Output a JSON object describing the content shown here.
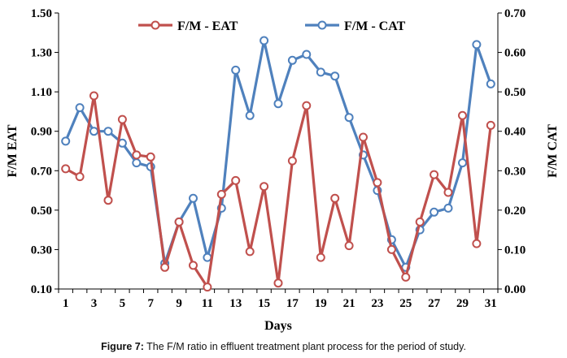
{
  "chart_data": {
    "type": "line",
    "xlabel": "Days",
    "ylabel_left": "F/M EAT",
    "ylabel_right": "F/M CAT",
    "x": [
      1,
      2,
      3,
      4,
      5,
      6,
      7,
      8,
      9,
      10,
      11,
      12,
      13,
      14,
      15,
      16,
      17,
      18,
      19,
      20,
      21,
      22,
      23,
      24,
      25,
      26,
      27,
      28,
      29,
      30,
      31
    ],
    "x_tick_labels": [
      "1",
      "3",
      "5",
      "7",
      "9",
      "11",
      "13",
      "15",
      "17",
      "19",
      "21",
      "23",
      "25",
      "27",
      "29",
      "31"
    ],
    "y_left": {
      "min": 0.1,
      "max": 1.5,
      "ticks": [
        "0.10",
        "0.30",
        "0.50",
        "0.70",
        "0.90",
        "1.10",
        "1.30",
        "1.50"
      ]
    },
    "y_right": {
      "min": 0.0,
      "max": 0.7,
      "ticks": [
        "0.00",
        "0.10",
        "0.20",
        "0.30",
        "0.40",
        "0.50",
        "0.60",
        "0.70"
      ]
    },
    "grid": false,
    "legend_position": "top-center",
    "series": [
      {
        "name": "F/M - EAT",
        "axis": "left",
        "color": "#c0504d",
        "values": [
          0.71,
          0.67,
          1.08,
          0.55,
          0.96,
          0.78,
          0.77,
          0.21,
          0.44,
          0.22,
          0.11,
          0.58,
          0.65,
          0.29,
          0.62,
          0.13,
          0.75,
          1.03,
          0.26,
          0.56,
          0.32,
          0.87,
          0.64,
          0.3,
          0.16,
          0.44,
          0.68,
          0.59,
          0.98,
          0.33,
          0.93
        ]
      },
      {
        "name": "F/M - CAT",
        "axis": "right",
        "color": "#4f81bd",
        "values": [
          0.375,
          0.46,
          0.4,
          0.4,
          0.37,
          0.32,
          0.31,
          0.065,
          0.17,
          0.23,
          0.08,
          0.205,
          0.555,
          0.44,
          0.63,
          0.47,
          0.58,
          0.595,
          0.55,
          0.54,
          0.435,
          0.34,
          0.25,
          0.125,
          0.055,
          0.15,
          0.195,
          0.205,
          0.32,
          0.62,
          0.52
        ]
      }
    ]
  },
  "caption": {
    "label": "Figure 7:",
    "text": " The F/M ratio in effluent treatment plant process for the period of study."
  }
}
